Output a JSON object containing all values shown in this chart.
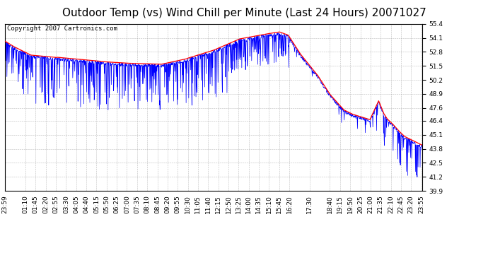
{
  "title": "Outdoor Temp (vs) Wind Chill per Minute (Last 24 Hours) 20071027",
  "copyright": "Copyright 2007 Cartronics.com",
  "yticks": [
    39.9,
    41.2,
    42.5,
    43.8,
    45.1,
    46.4,
    47.6,
    48.9,
    50.2,
    51.5,
    52.8,
    54.1,
    55.4
  ],
  "ylim": [
    39.9,
    55.4
  ],
  "xtick_labels": [
    "23:59",
    "01:10",
    "01:45",
    "02:20",
    "02:55",
    "03:30",
    "04:05",
    "04:40",
    "05:15",
    "05:50",
    "06:25",
    "07:00",
    "07:35",
    "08:10",
    "08:45",
    "09:20",
    "09:55",
    "10:30",
    "11:05",
    "11:40",
    "12:15",
    "12:50",
    "13:25",
    "14:00",
    "14:35",
    "15:10",
    "15:45",
    "16:20",
    "17:30",
    "18:40",
    "19:15",
    "19:50",
    "20:25",
    "21:00",
    "21:35",
    "22:10",
    "22:45",
    "23:20",
    "23:55"
  ],
  "bg_color": "#ffffff",
  "plot_bg_color": "#ffffff",
  "grid_color": "#aaaaaa",
  "red_color": "#ff0000",
  "blue_color": "#0000ff",
  "title_fontsize": 11,
  "copyright_fontsize": 6.5,
  "tick_fontsize": 6.5,
  "red_seed": 1,
  "blue_seed": 2
}
